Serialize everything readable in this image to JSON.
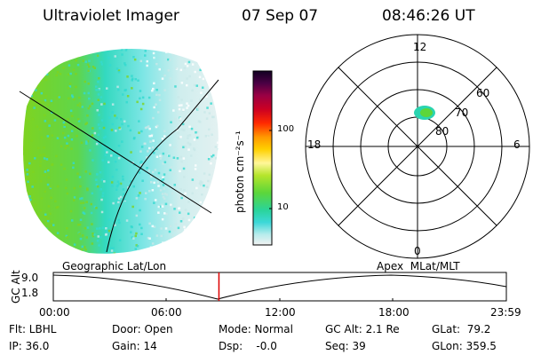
{
  "header": {
    "instrument": "Ultraviolet Imager",
    "date": "07 Sep 07",
    "time": "08:46:26 UT"
  },
  "colorbar": {
    "label": "photon cm⁻²s⁻¹",
    "ticks": [
      "100",
      "10"
    ]
  },
  "polar_plot": {
    "mlt_labels": [
      "12",
      "18",
      "6",
      "0"
    ],
    "lat_labels": [
      "60",
      "70",
      "80"
    ]
  },
  "altitude_panel": {
    "left_title": "Geographic Lat/Lon",
    "right_title": "Apex  MLat/MLT",
    "axis_label": "GC Alt",
    "y_ticks": [
      "9.0",
      "1.8"
    ],
    "hours": [
      "00:00",
      "06:00",
      "12:00",
      "18:00",
      "23:59"
    ],
    "current_time_fraction": 0.3656
  },
  "status": {
    "flt": "Flt: LBHL",
    "ip": "IP: 36.0",
    "door": "Door: Open",
    "gain": "Gain: 14",
    "mode": "Mode: Normal",
    "dsp": "Dsp:    -0.0",
    "gc_alt": "GC Alt: 2.1 Re",
    "seq": "Seq: 39",
    "glat": "GLat:  79.2",
    "glon": "GLon: 359.5"
  },
  "colors": {
    "emission_high": "#7ed321",
    "emission_mid": "#33d9d0",
    "emission_low": "#c9e9e9",
    "marker": "#dd0000"
  }
}
